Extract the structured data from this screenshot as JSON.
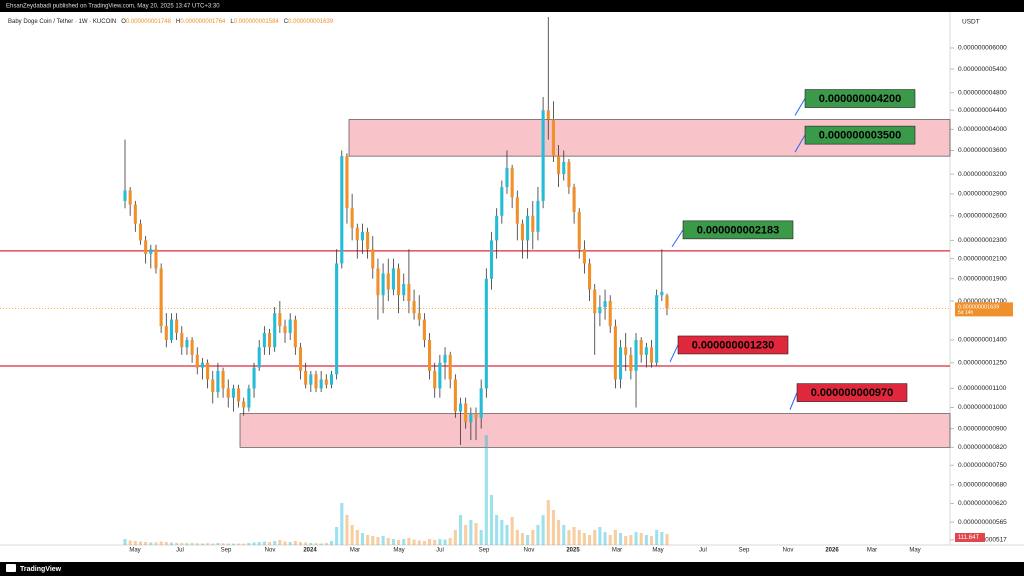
{
  "header": {
    "publisher": "EhsanZeydabadi published on TradingView.com, May 20, 2025 13:47 UTC+3:30",
    "symbol": "Baby Doge Coin / Tether · 1W · KUCOIN",
    "ohlc": [
      {
        "key": "O",
        "text": "0.000000001748"
      },
      {
        "key": "H",
        "text": "0.000000001764"
      },
      {
        "key": "L",
        "text": "0.000000001584"
      },
      {
        "key": "C",
        "text": "0.000000001639"
      }
    ]
  },
  "footer": {
    "brand": "TradingView"
  },
  "chart_data": {
    "type": "candlestick",
    "log_scale": true,
    "currency": "USDT",
    "up_color": "#26bcd6",
    "down_color": "#f0902a",
    "ylim": [
      5.04e-10,
      7.25e-09
    ],
    "yticks": [
      {
        "value": 6e-09,
        "label": "0.000000006000"
      },
      {
        "value": 5.4e-09,
        "label": "0.000000005400"
      },
      {
        "value": 4.8e-09,
        "label": "0.000000004800"
      },
      {
        "value": 4.4e-09,
        "label": "0.000000004400"
      },
      {
        "value": 4e-09,
        "label": "0.000000004000"
      },
      {
        "value": 3.6e-09,
        "label": "0.000000003600"
      },
      {
        "value": 3.2e-09,
        "label": "0.000000003200"
      },
      {
        "value": 2.9e-09,
        "label": "0.000000002900"
      },
      {
        "value": 2.6e-09,
        "label": "0.000000002600"
      },
      {
        "value": 2.3e-09,
        "label": "0.000000002300"
      },
      {
        "value": 2.1e-09,
        "label": "0.000000002100"
      },
      {
        "value": 1.9e-09,
        "label": "0.000000001900"
      },
      {
        "value": 1.7e-09,
        "label": "0.000000001700"
      },
      {
        "value": 1.4e-09,
        "label": "0.000000001400"
      },
      {
        "value": 1.25e-09,
        "label": "0.000000001250"
      },
      {
        "value": 1.1e-09,
        "label": "0.000000001100"
      },
      {
        "value": 1e-09,
        "label": "0.000000001000"
      },
      {
        "value": 9e-10,
        "label": "0.000000000900"
      },
      {
        "value": 8.2e-10,
        "label": "0.000000000820"
      },
      {
        "value": 7.5e-10,
        "label": "0.000000000750"
      },
      {
        "value": 6.8e-10,
        "label": "0.000000000680"
      },
      {
        "value": 6.2e-10,
        "label": "0.000000000620"
      },
      {
        "value": 5.65e-10,
        "label": "0.000000000565"
      },
      {
        "value": 5.17e-10,
        "label": "0.000000000517"
      }
    ],
    "time_labels": [
      "May",
      "Jul",
      "Sep",
      "Nov",
      "2024",
      "Mar",
      "May",
      "Jul",
      "Sep",
      "Nov",
      "2025",
      "Mar",
      "May",
      "Jul",
      "Sep",
      "Nov",
      "2026",
      "Mar",
      "May"
    ],
    "current_price": {
      "value": 1.639e-09,
      "label": "0.000000001639",
      "countdown": "5d 14h"
    },
    "volume_label": "111.64T",
    "annotations": [
      {
        "value": 4.2e-09,
        "label": "0.000000004200",
        "color": "#3a9a4a"
      },
      {
        "value": 3.5e-09,
        "label": "0.000000003500",
        "color": "#3a9a4a"
      },
      {
        "value": 2.183e-09,
        "label": "0.000000002183",
        "color": "#3a9a4a"
      },
      {
        "value": 1.23e-09,
        "label": "0.000000001230",
        "color": "#e0283c"
      },
      {
        "value": 9.7e-10,
        "label": "0.000000000970",
        "color": "#e0283c"
      }
    ],
    "lines": [
      {
        "value": 2.183e-09,
        "color": "#e0283c"
      },
      {
        "value": 1.23e-09,
        "color": "#e0283c"
      }
    ],
    "zones": [
      {
        "top": 4.2e-09,
        "bottom": 3.5e-09
      },
      {
        "top": 9.7e-10,
        "bottom": 8.2e-10
      }
    ],
    "candles": [
      [
        2.8e-09,
        3.8e-09,
        2.7e-09,
        2.95e-09
      ],
      [
        2.95e-09,
        3e-09,
        2.6e-09,
        2.75e-09
      ],
      [
        2.75e-09,
        2.8e-09,
        2.4e-09,
        2.5e-09
      ],
      [
        2.5e-09,
        2.55e-09,
        2.25e-09,
        2.3e-09
      ],
      [
        2.3e-09,
        2.35e-09,
        2.05e-09,
        2.15e-09
      ],
      [
        2.15e-09,
        2.25e-09,
        2e-09,
        2.2e-09
      ],
      [
        2.2e-09,
        2.25e-09,
        1.95e-09,
        2e-09
      ],
      [
        2e-09,
        2.05e-09,
        1.45e-09,
        1.5e-09
      ],
      [
        1.5e-09,
        1.6e-09,
        1.35e-09,
        1.4e-09
      ],
      [
        1.4e-09,
        1.6e-09,
        1.38e-09,
        1.55e-09
      ],
      [
        1.55e-09,
        1.6e-09,
        1.4e-09,
        1.45e-09
      ],
      [
        1.45e-09,
        1.5e-09,
        1.3e-09,
        1.35e-09
      ],
      [
        1.35e-09,
        1.42e-09,
        1.3e-09,
        1.4e-09
      ],
      [
        1.4e-09,
        1.42e-09,
        1.25e-09,
        1.3e-09
      ],
      [
        1.3e-09,
        1.35e-09,
        1.18e-09,
        1.22e-09
      ],
      [
        1.22e-09,
        1.28e-09,
        1.15e-09,
        1.25e-09
      ],
      [
        1.25e-09,
        1.27e-09,
        1.1e-09,
        1.15e-09
      ],
      [
        1.15e-09,
        1.2e-09,
        1.02e-09,
        1.08e-09
      ],
      [
        1.08e-09,
        1.25e-09,
        1.05e-09,
        1.2e-09
      ],
      [
        1.2e-09,
        1.22e-09,
        1.05e-09,
        1.1e-09
      ],
      [
        1.1e-09,
        1.15e-09,
        1e-09,
        1.05e-09
      ],
      [
        1.05e-09,
        1.12e-09,
        9.8e-10,
        1.1e-09
      ],
      [
        1.1e-09,
        1.12e-09,
        1e-09,
        1.03e-09
      ],
      [
        1.03e-09,
        1.05e-09,
        9.6e-10,
        1e-09
      ],
      [
        1e-09,
        1.12e-09,
        9.8e-10,
        1.1e-09
      ],
      [
        1.1e-09,
        1.25e-09,
        1.05e-09,
        1.22e-09
      ],
      [
        1.22e-09,
        1.4e-09,
        1.2e-09,
        1.35e-09
      ],
      [
        1.35e-09,
        1.5e-09,
        1.3e-09,
        1.45e-09
      ],
      [
        1.45e-09,
        1.48e-09,
        1.3e-09,
        1.35e-09
      ],
      [
        1.35e-09,
        1.65e-09,
        1.32e-09,
        1.6e-09
      ],
      [
        1.6e-09,
        1.7e-09,
        1.45e-09,
        1.5e-09
      ],
      [
        1.5e-09,
        1.55e-09,
        1.38e-09,
        1.45e-09
      ],
      [
        1.45e-09,
        1.6e-09,
        1.4e-09,
        1.55e-09
      ],
      [
        1.55e-09,
        1.58e-09,
        1.3e-09,
        1.35e-09
      ],
      [
        1.35e-09,
        1.38e-09,
        1.15e-09,
        1.2e-09
      ],
      [
        1.2e-09,
        1.25e-09,
        1.1e-09,
        1.12e-09
      ],
      [
        1.12e-09,
        1.2e-09,
        1.08e-09,
        1.18e-09
      ],
      [
        1.18e-09,
        1.2e-09,
        1.08e-09,
        1.1e-09
      ],
      [
        1.1e-09,
        1.2e-09,
        1.08e-09,
        1.15e-09
      ],
      [
        1.15e-09,
        1.18e-09,
        1.1e-09,
        1.12e-09
      ],
      [
        1.12e-09,
        1.2e-09,
        1.1e-09,
        1.18e-09
      ],
      [
        1.18e-09,
        2.2e-09,
        1.15e-09,
        2.05e-09
      ],
      [
        2.05e-09,
        3.6e-09,
        2e-09,
        3.5e-09
      ],
      [
        3.5e-09,
        3.55e-09,
        2.5e-09,
        2.7e-09
      ],
      [
        2.7e-09,
        2.9e-09,
        2.3e-09,
        2.45e-09
      ],
      [
        2.45e-09,
        2.5e-09,
        2.1e-09,
        2.3e-09
      ],
      [
        2.3e-09,
        2.5e-09,
        2.15e-09,
        2.4e-09
      ],
      [
        2.4e-09,
        2.45e-09,
        2.1e-09,
        2.2e-09
      ],
      [
        2.2e-09,
        2.35e-09,
        1.9e-09,
        2e-09
      ],
      [
        2e-09,
        2.1e-09,
        1.55e-09,
        1.75e-09
      ],
      [
        1.75e-09,
        2.05e-09,
        1.6e-09,
        1.95e-09
      ],
      [
        1.95e-09,
        2.1e-09,
        1.7e-09,
        1.8e-09
      ],
      [
        1.8e-09,
        2.1e-09,
        1.75e-09,
        2e-09
      ],
      [
        2e-09,
        2.05e-09,
        1.6e-09,
        1.75e-09
      ],
      [
        1.75e-09,
        1.95e-09,
        1.7e-09,
        1.85e-09
      ],
      [
        1.85e-09,
        2.2e-09,
        1.6e-09,
        1.7e-09
      ],
      [
        1.7e-09,
        1.8e-09,
        1.55e-09,
        1.6e-09
      ],
      [
        1.6e-09,
        1.75e-09,
        1.5e-09,
        1.55e-09
      ],
      [
        1.55e-09,
        1.6e-09,
        1.35e-09,
        1.4e-09
      ],
      [
        1.4e-09,
        1.45e-09,
        1.15e-09,
        1.2e-09
      ],
      [
        1.2e-09,
        1.25e-09,
        1.05e-09,
        1.1e-09
      ],
      [
        1.1e-09,
        1.3e-09,
        1.05e-09,
        1.25e-09
      ],
      [
        1.25e-09,
        1.35e-09,
        1.15e-09,
        1.3e-09
      ],
      [
        1.3e-09,
        1.32e-09,
        1.1e-09,
        1.15e-09
      ],
      [
        1.15e-09,
        1.18e-09,
        9.5e-10,
        9.8e-10
      ],
      [
        9.8e-10,
        1.05e-09,
        8.3e-10,
        1.02e-09
      ],
      [
        1.02e-09,
        1.05e-09,
        9e-10,
        9.3e-10
      ],
      [
        9.3e-10,
        1e-09,
        8.5e-10,
        9.7e-10
      ],
      [
        9.7e-10,
        1e-09,
        8.5e-10,
        9.5e-10
      ],
      [
        9.5e-10,
        1.15e-09,
        9e-10,
        1.1e-09
      ],
      [
        1.1e-09,
        2e-09,
        1.05e-09,
        1.9e-09
      ],
      [
        1.9e-09,
        2.4e-09,
        1.8e-09,
        2.3e-09
      ],
      [
        2.3e-09,
        2.7e-09,
        2.1e-09,
        2.6e-09
      ],
      [
        2.6e-09,
        3.1e-09,
        2.5e-09,
        3e-09
      ],
      [
        3e-09,
        3.6e-09,
        2.9e-09,
        3.3e-09
      ],
      [
        3.3e-09,
        3.35e-09,
        2.7e-09,
        2.85e-09
      ],
      [
        2.85e-09,
        2.95e-09,
        2.3e-09,
        2.5e-09
      ],
      [
        2.5e-09,
        2.55e-09,
        2.1e-09,
        2.3e-09
      ],
      [
        2.3e-09,
        2.7e-09,
        2.1e-09,
        2.6e-09
      ],
      [
        2.6e-09,
        2.8e-09,
        2.2e-09,
        2.4e-09
      ],
      [
        2.4e-09,
        3e-09,
        2.3e-09,
        2.8e-09
      ],
      [
        2.8e-09,
        4.7e-09,
        2.7e-09,
        4.4e-09
      ],
      [
        4.4e-09,
        7e-09,
        3.8e-09,
        4.2e-09
      ],
      [
        4.2e-09,
        4.6e-09,
        3.4e-09,
        3.5e-09
      ],
      [
        3.5e-09,
        3.7e-09,
        3e-09,
        3.2e-09
      ],
      [
        3.2e-09,
        3.6e-09,
        3.1e-09,
        3.4e-09
      ],
      [
        3.4e-09,
        3.45e-09,
        2.9e-09,
        3e-09
      ],
      [
        3e-09,
        3.05e-09,
        2.5e-09,
        2.65e-09
      ],
      [
        2.65e-09,
        2.7e-09,
        2.1e-09,
        2.2e-09
      ],
      [
        2.2e-09,
        2.3e-09,
        1.95e-09,
        2.05e-09
      ],
      [
        2.05e-09,
        2.1e-09,
        1.7e-09,
        1.8e-09
      ],
      [
        1.8e-09,
        1.85e-09,
        1.3e-09,
        1.6e-09
      ],
      [
        1.6e-09,
        1.75e-09,
        1.5e-09,
        1.65e-09
      ],
      [
        1.65e-09,
        1.8e-09,
        1.55e-09,
        1.7e-09
      ],
      [
        1.7e-09,
        1.75e-09,
        1.45e-09,
        1.5e-09
      ],
      [
        1.5e-09,
        1.55e-09,
        1.1e-09,
        1.15e-09
      ],
      [
        1.15e-09,
        1.4e-09,
        1.1e-09,
        1.35e-09
      ],
      [
        1.35e-09,
        1.45e-09,
        1.2e-09,
        1.3e-09
      ],
      [
        1.3e-09,
        1.35e-09,
        1.15e-09,
        1.2e-09
      ],
      [
        1.2e-09,
        1.45e-09,
        1e-09,
        1.4e-09
      ],
      [
        1.4e-09,
        1.42e-09,
        1.25e-09,
        1.3e-09
      ],
      [
        1.3e-09,
        1.38e-09,
        1.22e-09,
        1.35e-09
      ],
      [
        1.35e-09,
        1.4e-09,
        1.22e-09,
        1.25e-09
      ],
      [
        1.25e-09,
        1.8e-09,
        1.23e-09,
        1.75e-09
      ],
      [
        1.75e-09,
        2.2e-09,
        1.7e-09,
        1.78e-09
      ],
      [
        1.748e-09,
        1.764e-09,
        1.584e-09,
        1.639e-09
      ]
    ],
    "volumes": [
      60,
      45,
      40,
      35,
      30,
      25,
      28,
      35,
      30,
      25,
      22,
      20,
      18,
      20,
      18,
      15,
      18,
      15,
      20,
      18,
      15,
      14,
      15,
      14,
      20,
      25,
      30,
      35,
      30,
      40,
      50,
      35,
      30,
      40,
      30,
      25,
      20,
      18,
      15,
      20,
      40,
      180,
      420,
      300,
      200,
      150,
      120,
      100,
      90,
      80,
      90,
      70,
      60,
      50,
      60,
      70,
      55,
      45,
      40,
      60,
      50,
      60,
      55,
      70,
      150,
      300,
      200,
      250,
      220,
      150,
      1100,
      500,
      300,
      250,
      200,
      280,
      150,
      120,
      100,
      150,
      200,
      300,
      450,
      350,
      250,
      200,
      150,
      180,
      150,
      120,
      100,
      150,
      180,
      130,
      100,
      150,
      120,
      90,
      100,
      130,
      120,
      100,
      90,
      150,
      130,
      111.64
    ]
  }
}
